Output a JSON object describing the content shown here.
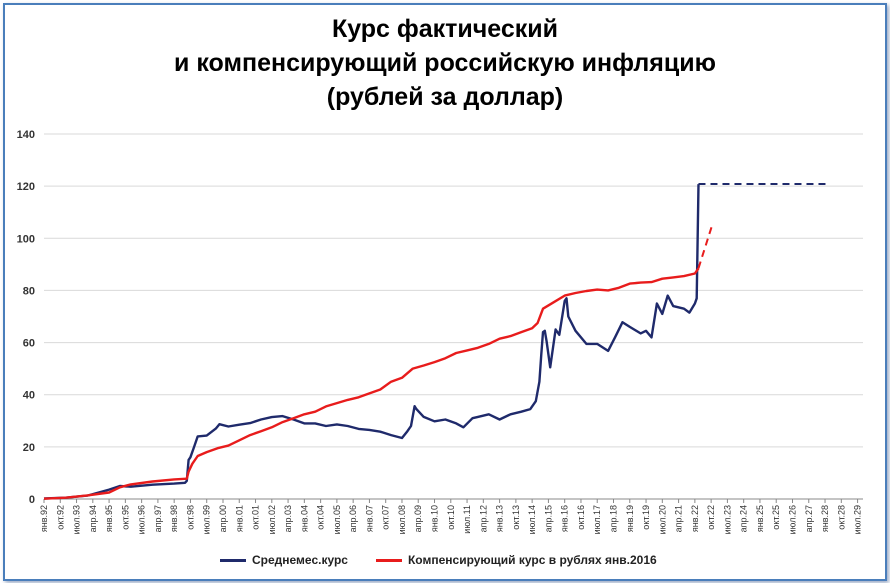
{
  "chart_data": {
    "type": "line",
    "title_lines": [
      "Курс фактический",
      "и компенсирующий российскую инфляцию",
      "(рублей за доллар)"
    ],
    "ylim": [
      0,
      140
    ],
    "yticks": [
      0,
      20,
      40,
      60,
      80,
      100,
      120,
      140
    ],
    "grid": true,
    "legend_position": "bottom",
    "x_start": "янв.92",
    "x_ticks": [
      "янв.92",
      "окт.92",
      "июл.93",
      "апр.94",
      "янв.95",
      "окт.95",
      "июл.96",
      "апр.97",
      "янв.98",
      "окт.98",
      "июл.99",
      "апр.00",
      "янв.01",
      "окт.01",
      "июл.02",
      "апр.03",
      "янв.04",
      "окт.04",
      "июл.05",
      "апр.06",
      "янв.07",
      "окт.07",
      "июл.08",
      "апр.09",
      "янв.10",
      "окт.10",
      "июл.11",
      "апр.12",
      "янв.13",
      "окт.13",
      "июл.14",
      "апр.15",
      "янв.16",
      "окт.16",
      "июл.17",
      "апр.18",
      "янв.19",
      "окт.19",
      "июл.20",
      "апр.21",
      "янв.22",
      "окт.22",
      "июл.23",
      "апр.24",
      "янв.25",
      "окт.25",
      "июл.26",
      "апр.27",
      "янв.28",
      "окт.28",
      "июл.29"
    ],
    "series": [
      {
        "name": "Среднемес.курс",
        "color": "#1f2a6b",
        "points": [
          [
            "янв.92",
            0.2
          ],
          [
            "янв.93",
            0.5
          ],
          [
            "янв.94",
            1.3
          ],
          [
            "янв.95",
            3.6
          ],
          [
            "июл.95",
            5.0
          ],
          [
            "янв.96",
            4.7
          ],
          [
            "янв.97",
            5.5
          ],
          [
            "янв.98",
            5.9
          ],
          [
            "июл.98",
            6.2
          ],
          [
            "авг.98",
            7.0
          ],
          [
            "сен.98",
            15.0
          ],
          [
            "окт.98",
            16.0
          ],
          [
            "дек.98",
            20.0
          ],
          [
            "фев.99",
            24.0
          ],
          [
            "июл.99",
            24.3
          ],
          [
            "дек.99",
            27.0
          ],
          [
            "фев.00",
            28.7
          ],
          [
            "июл.00",
            27.8
          ],
          [
            "янв.01",
            28.5
          ],
          [
            "июл.01",
            29.1
          ],
          [
            "янв.02",
            30.5
          ],
          [
            "июл.02",
            31.4
          ],
          [
            "янв.03",
            31.8
          ],
          [
            "июл.03",
            30.5
          ],
          [
            "янв.04",
            29.0
          ],
          [
            "июл.04",
            29.0
          ],
          [
            "янв.05",
            28.0
          ],
          [
            "июл.05",
            28.6
          ],
          [
            "янв.06",
            28.0
          ],
          [
            "июл.06",
            26.9
          ],
          [
            "янв.07",
            26.5
          ],
          [
            "июл.07",
            25.8
          ],
          [
            "янв.08",
            24.5
          ],
          [
            "июл.08",
            23.4
          ],
          [
            "окт.08",
            26.0
          ],
          [
            "дек.08",
            28.0
          ],
          [
            "фев.09",
            35.6
          ],
          [
            "мар.09",
            34.5
          ],
          [
            "июл.09",
            31.5
          ],
          [
            "янв.10",
            29.8
          ],
          [
            "июл.10",
            30.5
          ],
          [
            "янв.11",
            29.0
          ],
          [
            "май.11",
            27.5
          ],
          [
            "окт.11",
            31.0
          ],
          [
            "янв.12",
            31.5
          ],
          [
            "июл.12",
            32.5
          ],
          [
            "янв.13",
            30.5
          ],
          [
            "июл.13",
            32.5
          ],
          [
            "янв.14",
            33.5
          ],
          [
            "июн.14",
            34.5
          ],
          [
            "сен.14",
            37.5
          ],
          [
            "ноя.14",
            45.0
          ],
          [
            "дек.14",
            55.0
          ],
          [
            "янв.15",
            64.0
          ],
          [
            "фев.15",
            64.5
          ],
          [
            "мар.15",
            60.5
          ],
          [
            "май.15",
            50.5
          ],
          [
            "авг.15",
            65.0
          ],
          [
            "окт.15",
            63.0
          ],
          [
            "янв.16",
            76.0
          ],
          [
            "фев.16",
            77.0
          ],
          [
            "мар.16",
            70.0
          ],
          [
            "июл.16",
            64.5
          ],
          [
            "янв.17",
            59.5
          ],
          [
            "июл.17",
            59.5
          ],
          [
            "янв.18",
            56.8
          ],
          [
            "май.18",
            62.2
          ],
          [
            "сен.18",
            67.8
          ],
          [
            "янв.19",
            66.0
          ],
          [
            "июл.19",
            63.5
          ],
          [
            "окт.19",
            64.5
          ],
          [
            "янв.20",
            62.0
          ],
          [
            "апр.20",
            75.0
          ],
          [
            "июл.20",
            71.0
          ],
          [
            "окт.20",
            78.0
          ],
          [
            "янв.21",
            74.0
          ],
          [
            "июл.21",
            73.0
          ],
          [
            "окт.21",
            71.5
          ],
          [
            "янв.22",
            75.0
          ],
          [
            "фев.22",
            77.0
          ],
          [
            "мар.22",
            120.8
          ]
        ],
        "projection": {
          "from": [
            "мар.22",
            120.8
          ],
          "to": [
            "мар.28",
            120.8
          ],
          "style": "dashed"
        }
      },
      {
        "name": "Компенсирующий курс в рублях янв.2016",
        "color": "#e81c1c",
        "points": [
          [
            "янв.92",
            0.1
          ],
          [
            "янв.93",
            0.5
          ],
          [
            "янв.94",
            1.4
          ],
          [
            "янв.95",
            2.5
          ],
          [
            "июл.95",
            4.5
          ],
          [
            "янв.96",
            5.6
          ],
          [
            "янв.97",
            6.7
          ],
          [
            "янв.98",
            7.5
          ],
          [
            "авг.98",
            7.8
          ],
          [
            "сен.98",
            10.5
          ],
          [
            "ноя.98",
            13.5
          ],
          [
            "фев.99",
            16.5
          ],
          [
            "июл.99",
            18.0
          ],
          [
            "янв.00",
            19.5
          ],
          [
            "июл.00",
            20.5
          ],
          [
            "янв.01",
            22.5
          ],
          [
            "июл.01",
            24.5
          ],
          [
            "янв.02",
            26.0
          ],
          [
            "июл.02",
            27.5
          ],
          [
            "янв.03",
            29.5
          ],
          [
            "июл.03",
            31.0
          ],
          [
            "янв.04",
            32.5
          ],
          [
            "июл.04",
            33.5
          ],
          [
            "янв.05",
            35.5
          ],
          [
            "июл.05",
            36.8
          ],
          [
            "янв.06",
            38.0
          ],
          [
            "июл.06",
            39.0
          ],
          [
            "янв.07",
            40.5
          ],
          [
            "июл.07",
            42.0
          ],
          [
            "янв.08",
            45.0
          ],
          [
            "июл.08",
            46.5
          ],
          [
            "янв.09",
            50.0
          ],
          [
            "июл.09",
            51.2
          ],
          [
            "янв.10",
            52.5
          ],
          [
            "июл.10",
            54.0
          ],
          [
            "янв.11",
            56.0
          ],
          [
            "июл.11",
            57.0
          ],
          [
            "янв.12",
            58.0
          ],
          [
            "июл.12",
            59.5
          ],
          [
            "янв.13",
            61.5
          ],
          [
            "июл.13",
            62.5
          ],
          [
            "янв.14",
            64.0
          ],
          [
            "июл.14",
            65.5
          ],
          [
            "окт.14",
            67.5
          ],
          [
            "янв.15",
            73.0
          ],
          [
            "июл.15",
            75.5
          ],
          [
            "янв.16",
            78.0
          ],
          [
            "июл.16",
            79.0
          ],
          [
            "янв.17",
            79.8
          ],
          [
            "июл.17",
            80.3
          ],
          [
            "янв.18",
            80.0
          ],
          [
            "июл.18",
            81.0
          ],
          [
            "янв.19",
            82.6
          ],
          [
            "июл.19",
            83.0
          ],
          [
            "янв.20",
            83.2
          ],
          [
            "июл.20",
            84.5
          ],
          [
            "янв.21",
            85.0
          ],
          [
            "июл.21",
            85.5
          ],
          [
            "янв.22",
            86.5
          ],
          [
            "мар.22",
            88.5
          ]
        ],
        "projection": {
          "from": [
            "мар.22",
            88.5
          ],
          "to": [
            "ноя.22",
            106.0
          ],
          "style": "dashed"
        }
      }
    ]
  }
}
